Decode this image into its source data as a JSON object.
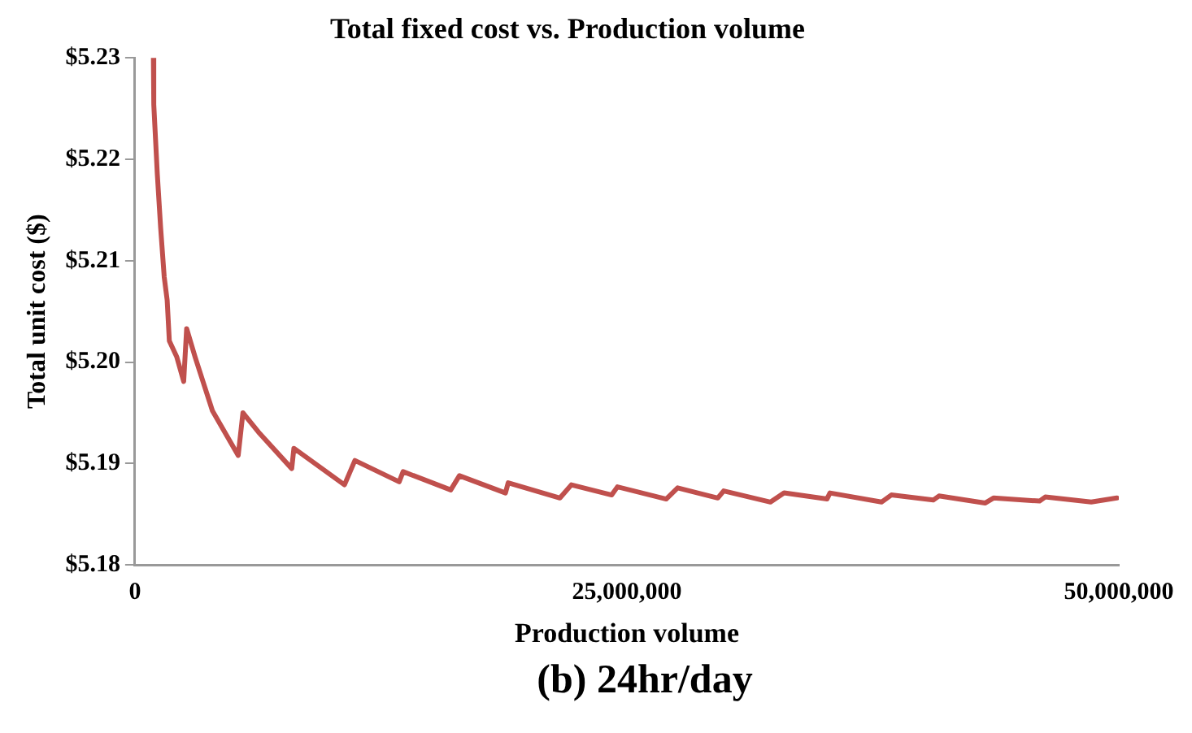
{
  "chart_data": {
    "type": "line",
    "title": "Total fixed cost vs. Production volume",
    "xlabel": "Production volume",
    "ylabel": "Total unit cost ($)",
    "annotations": [
      "(b) 24hr/day"
    ],
    "x": [
      940000,
      960000,
      1140000,
      1310000,
      1490000,
      1640000,
      1750000,
      2130000,
      2480000,
      2630000,
      3060000,
      3940000,
      5250000,
      5490000,
      6280000,
      7970000,
      8080000,
      10650000,
      11180000,
      13430000,
      13630000,
      16050000,
      16490000,
      18830000,
      18970000,
      21600000,
      22180000,
      24230000,
      24520000,
      27000000,
      27580000,
      29620000,
      29920000,
      32300000,
      32990000,
      35170000,
      35320000,
      37940000,
      38440000,
      40570000,
      40860000,
      43200000,
      43630000,
      45970000,
      46260000,
      48600000,
      49900000
    ],
    "series": [
      {
        "color": "#c0504d",
        "values": [
          5.23,
          5.2254,
          5.2185,
          5.2132,
          5.2084,
          5.2061,
          5.2021,
          5.2005,
          5.1981,
          5.2033,
          5.2005,
          5.1952,
          5.1908,
          5.195,
          5.1931,
          5.1895,
          5.1915,
          5.1879,
          5.1903,
          5.1882,
          5.1892,
          5.1874,
          5.1888,
          5.1871,
          5.1881,
          5.1866,
          5.1879,
          5.1869,
          5.1877,
          5.1865,
          5.1876,
          5.1866,
          5.1873,
          5.1862,
          5.1871,
          5.1865,
          5.1871,
          5.1862,
          5.1869,
          5.1864,
          5.1868,
          5.1861,
          5.1866,
          5.1863,
          5.1867,
          5.1862,
          5.1866
        ]
      }
    ],
    "xlim": [
      0,
      50000000
    ],
    "xticks": [
      0,
      {
        "value": 25000000,
        "label": "25,000,000"
      },
      {
        "value": 50000000,
        "label": "50,000,000"
      }
    ],
    "ylim": [
      5.18,
      5.23
    ],
    "yticks": [
      {
        "value": 5.18,
        "label": "$5.18"
      },
      {
        "value": 5.19,
        "label": "$5.19"
      },
      {
        "value": 5.2,
        "label": "$5.20"
      },
      {
        "value": 5.21,
        "label": "$5.21"
      },
      {
        "value": 5.22,
        "label": "$5.22"
      },
      {
        "value": 5.23,
        "label": "$5.23"
      }
    ],
    "grid": false,
    "legend": false,
    "line_style": "solid"
  }
}
